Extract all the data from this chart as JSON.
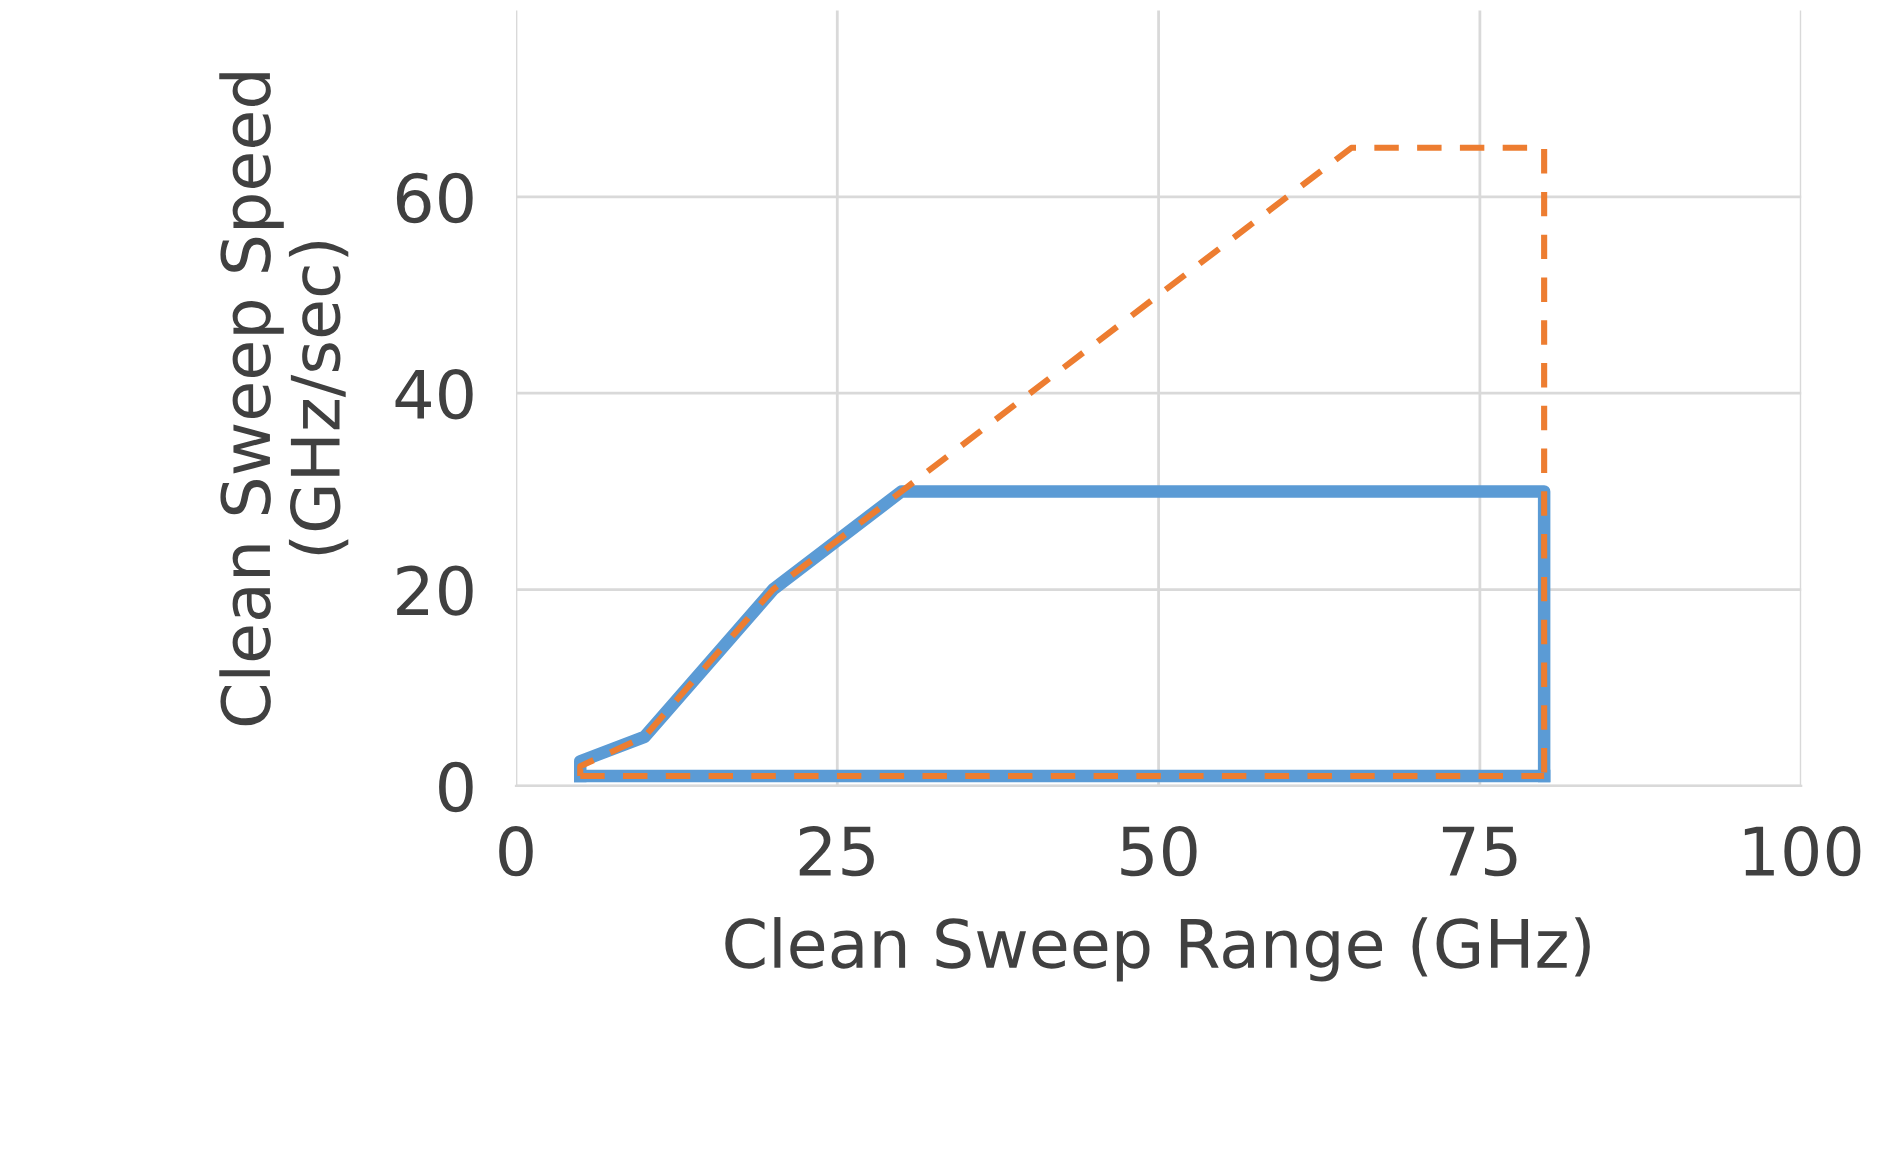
{
  "chart_data": {
    "type": "line",
    "xlabel": "Clean Sweep Range (GHz)",
    "ylabel": "Clean Sweep Speed\n(GHz/sec)",
    "xlim": [
      0,
      100
    ],
    "xticks": [
      0,
      25,
      50,
      75,
      100
    ],
    "ylim": [
      0,
      79
    ],
    "yticks": [
      0,
      20,
      40,
      60
    ],
    "grid": true,
    "legend": false,
    "marker": "none",
    "series": [
      {
        "color": "#5b9bd5",
        "line_style": "solid",
        "x": [
          5,
          5,
          10,
          20,
          30,
          80,
          80
        ],
        "values": [
          1,
          2.5,
          5,
          20,
          30,
          30,
          1
        ]
      },
      {
        "color": "#5b9bd5",
        "line_style": "solid",
        "x": [
          5,
          80
        ],
        "values": [
          1,
          1
        ]
      },
      {
        "color": "#ed7d31",
        "line_style": "dashed",
        "x": [
          5,
          5,
          10,
          20,
          30,
          65,
          80,
          80
        ],
        "values": [
          1,
          2,
          5,
          20,
          30,
          65,
          65,
          1
        ]
      },
      {
        "color": "#ed7d31",
        "line_style": "dashed",
        "x": [
          5,
          80
        ],
        "values": [
          1,
          1
        ]
      }
    ]
  }
}
